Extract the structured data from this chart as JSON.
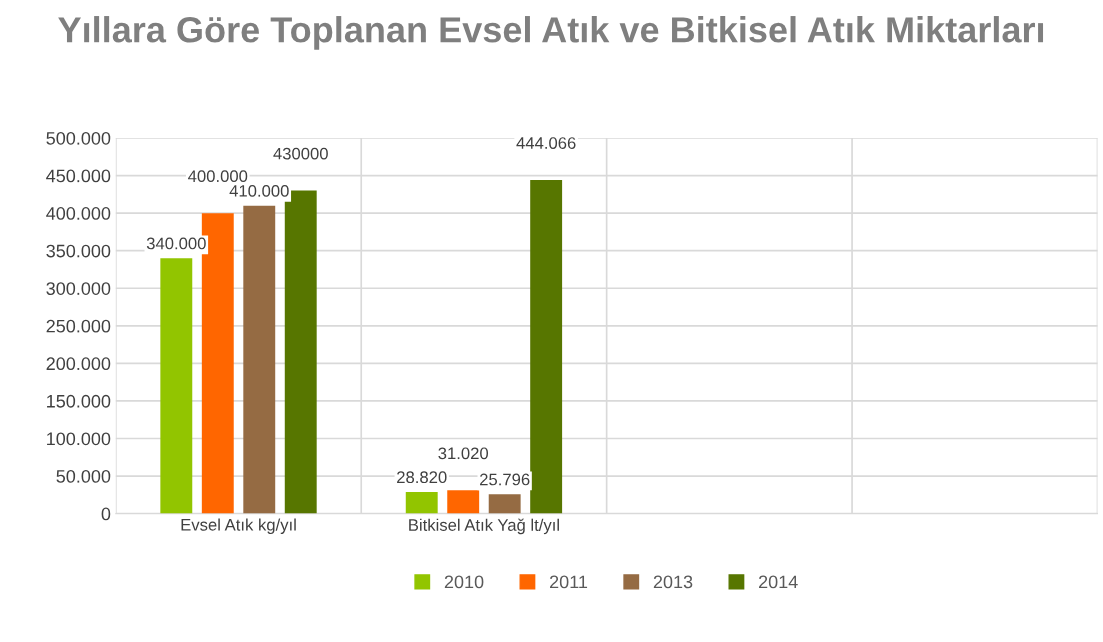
{
  "chart_data": {
    "type": "bar",
    "title": "Yıllara Göre Toplanan Evsel Atık ve Bitkisel Atık Miktarları",
    "categories": [
      "Evsel Atık kg/yıl",
      "Bitkisel Atık Yağ lt/yıl",
      null,
      null
    ],
    "series": [
      {
        "name": "2010",
        "color": "#92c500",
        "values": [
          340000,
          28820,
          null,
          null
        ],
        "value_labels": [
          "340.000",
          "28.820",
          null,
          null
        ]
      },
      {
        "name": "2011",
        "color": "#ff6600",
        "values": [
          400000,
          31020,
          null,
          null
        ],
        "value_labels": [
          "400.000",
          "31.020",
          null,
          null
        ]
      },
      {
        "name": "2013",
        "color": "#956b43",
        "values": [
          410000,
          25796,
          null,
          null
        ],
        "value_labels": [
          "410.000",
          "25.796",
          null,
          null
        ]
      },
      {
        "name": "2014",
        "color": "#577600",
        "values": [
          430000,
          444066,
          null,
          null
        ],
        "value_labels": [
          "430000",
          "444.066",
          null,
          null
        ]
      }
    ],
    "ylim": [
      0,
      500000
    ],
    "yticks": [
      {
        "value": 0,
        "label": "0"
      },
      {
        "value": 50000,
        "label": "50.000"
      },
      {
        "value": 100000,
        "label": "100.000"
      },
      {
        "value": 150000,
        "label": "150.000"
      },
      {
        "value": 200000,
        "label": "200.000"
      },
      {
        "value": 250000,
        "label": "250.000"
      },
      {
        "value": 300000,
        "label": "300.000"
      },
      {
        "value": 350000,
        "label": "350.000"
      },
      {
        "value": 400000,
        "label": "400.000"
      },
      {
        "value": 450000,
        "label": "450.000"
      },
      {
        "value": 500000,
        "label": "500.000"
      }
    ],
    "grid": true,
    "legend": "bottom"
  }
}
